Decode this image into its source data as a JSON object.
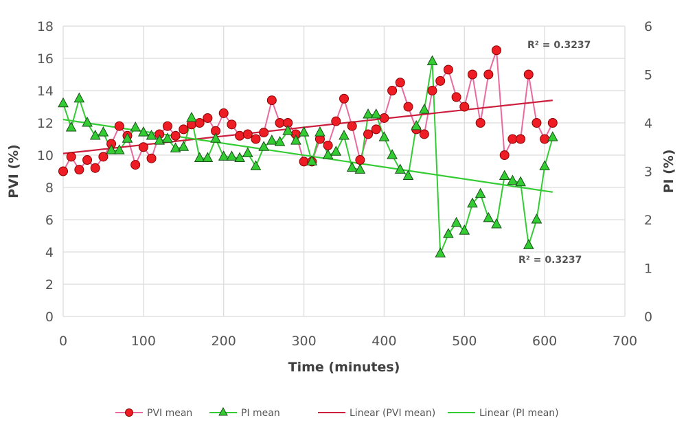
{
  "chart_data": {
    "type": "line",
    "xlabel": "Time (minutes)",
    "ylabel": "PVI (%)",
    "y2label": "PI (%)",
    "xlim": [
      0,
      700
    ],
    "ylim": [
      0,
      18
    ],
    "y2lim": [
      0,
      6
    ],
    "xticks": [
      "0",
      "100",
      "200",
      "300",
      "400",
      "500",
      "600",
      "700"
    ],
    "yticks": [
      "0",
      "2",
      "4",
      "6",
      "8",
      "10",
      "12",
      "14",
      "16",
      "18"
    ],
    "y2ticks": [
      "0",
      "1",
      "2",
      "3",
      "4",
      "5",
      "6"
    ],
    "grid": true,
    "legend_position": "bottom",
    "x": [
      0,
      10,
      20,
      30,
      40,
      50,
      60,
      70,
      80,
      90,
      100,
      110,
      120,
      130,
      140,
      150,
      160,
      170,
      180,
      190,
      200,
      210,
      220,
      230,
      240,
      250,
      260,
      270,
      280,
      290,
      300,
      310,
      320,
      330,
      340,
      350,
      360,
      370,
      380,
      390,
      400,
      410,
      420,
      430,
      440,
      450,
      460,
      470,
      480,
      490,
      500,
      510,
      520,
      530,
      540,
      550,
      560,
      570,
      580,
      590,
      600,
      610
    ],
    "series": [
      {
        "name": "PVI mean",
        "axis": "left",
        "color": "#e8174a",
        "marker": "circle",
        "values": [
          9.0,
          9.9,
          9.1,
          9.7,
          9.2,
          9.9,
          10.7,
          11.8,
          11.2,
          9.4,
          10.5,
          9.8,
          11.3,
          11.8,
          11.2,
          11.6,
          11.9,
          12.0,
          12.3,
          11.5,
          12.6,
          11.9,
          11.2,
          11.3,
          11.0,
          11.4,
          13.4,
          12.0,
          12.0,
          11.3,
          9.6,
          9.6,
          11.0,
          10.6,
          12.1,
          13.5,
          11.8,
          9.7,
          11.3,
          11.6,
          12.3,
          14.0,
          14.5,
          13.0,
          11.6,
          11.3,
          14.0,
          14.6,
          15.3,
          13.6,
          13.0,
          15.0,
          12.0,
          15.0,
          16.5,
          10.0,
          11.0,
          11.0,
          15.0,
          12.0,
          11.0,
          12.0
        ]
      },
      {
        "name": "PI mean",
        "axis": "right",
        "color": "#33cc33",
        "marker": "triangle",
        "values": [
          4.4,
          3.9,
          4.5,
          4.0,
          3.73,
          3.8,
          3.43,
          3.43,
          3.67,
          3.9,
          3.8,
          3.73,
          3.63,
          3.67,
          3.47,
          3.5,
          4.1,
          3.27,
          3.27,
          3.67,
          3.3,
          3.3,
          3.27,
          3.37,
          3.1,
          3.5,
          3.63,
          3.6,
          3.83,
          3.63,
          3.8,
          3.2,
          3.8,
          3.33,
          3.4,
          3.73,
          3.07,
          3.03,
          4.17,
          4.17,
          3.7,
          3.33,
          3.03,
          2.9,
          3.93,
          4.27,
          5.27,
          1.3,
          1.7,
          1.93,
          1.77,
          2.33,
          2.53,
          2.03,
          1.9,
          2.9,
          2.8,
          2.77,
          1.47,
          2.0,
          3.1,
          3.7
        ]
      }
    ],
    "trendlines": [
      {
        "name": "Linear (PVI mean)",
        "axis": "left",
        "color": "#cc1f3d",
        "x": [
          0,
          610
        ],
        "y": [
          10.1,
          13.4
        ],
        "r2_label": "R² = 0.3237"
      },
      {
        "name": "Linear (PI mean)",
        "axis": "right",
        "color": "#33cc33",
        "x": [
          0,
          610
        ],
        "y": [
          4.07,
          2.57
        ],
        "r2_label": "R² = 0.3237"
      }
    ],
    "legend": [
      "PVI mean",
      "PI mean",
      "Linear (PVI mean)",
      "Linear (PI mean)"
    ]
  }
}
